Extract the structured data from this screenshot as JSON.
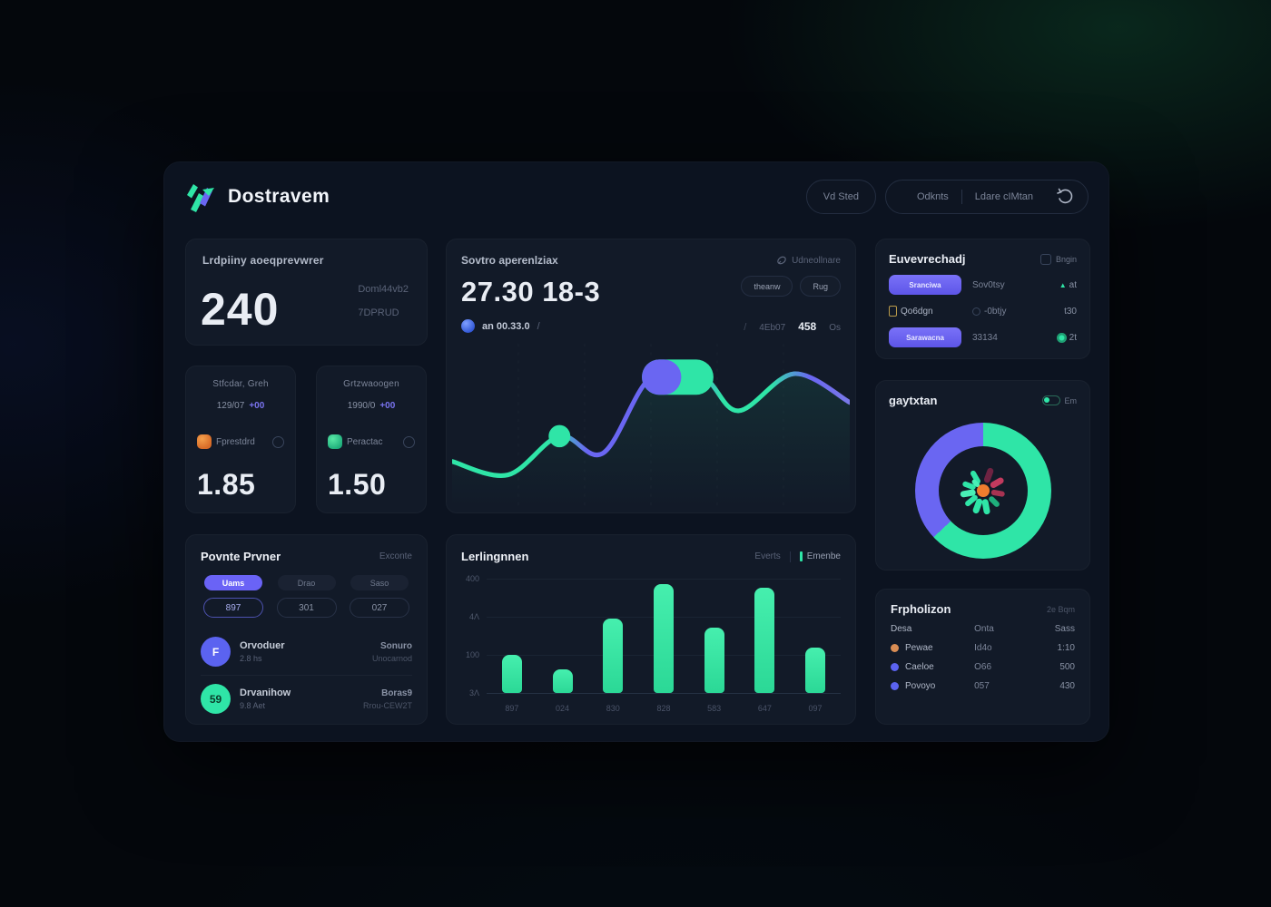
{
  "theme": {
    "accent_green": "#2fe5a7",
    "accent_purple": "#6a66f2",
    "orange": "#ef7d2e",
    "pink": "#c23a5e",
    "panel_bg": "#0c1320",
    "card_bg": "#121a28"
  },
  "header": {
    "logo_text": "Dostravem",
    "btn_single": "Vd Sted",
    "btn_group_left": "Odknts",
    "btn_group_right": "Ldare cIMtan"
  },
  "left": {
    "stat_card": {
      "title": "Lrdpiiny aoeqprevwrer",
      "value": "240",
      "side_line1": "Doml44vb2",
      "side_line2": "7DPRUD"
    },
    "mini_cards": [
      {
        "title": "Stfcdar, Greh",
        "value": "129/07",
        "delta": "+00",
        "label": "Fprestdrd",
        "big": "1.85"
      },
      {
        "title": "Grtzwaoogen",
        "value": "1990/0",
        "delta": "+00",
        "label": "Peractac",
        "big": "1.50"
      }
    ],
    "points_panel": {
      "title": "Povnte Prvner",
      "link": "Exconte",
      "tabs": [
        "Uams",
        "Drao",
        "Saso"
      ],
      "tab_values": [
        "897",
        "301",
        "027"
      ],
      "rows": [
        {
          "avatar": "F",
          "avatar_color": "#5b63f0",
          "name": "Orvoduer",
          "sub": "2.8 hs",
          "right_top": "Sonuro",
          "right_bottom": "Unocarnod"
        },
        {
          "avatar": "59",
          "avatar_color": "#2fe5a7",
          "name": "Drvanihow",
          "sub": "9.8 Aet",
          "right_top": "Boras9",
          "right_bottom": "Rrou-CEW2T"
        }
      ]
    }
  },
  "center": {
    "main_chart": {
      "title": "Sovtro aperenlziax",
      "link": "Udneollnare",
      "value": "27.30 18-3",
      "pill1": "theanw",
      "pill2": "Rug",
      "meta_left": "an 00.33.0",
      "meta_sep": "/",
      "meta_sep2": "/",
      "meta_r1": "4Eb07",
      "meta_r2": "458",
      "meta_r3": "Os"
    },
    "bar_chart": {
      "title": "Lerlingnnen",
      "legend1": "Everts",
      "legend2": "Emenbe"
    }
  },
  "right": {
    "exchange_panel": {
      "title": "Euvevrechadj",
      "action": "Bngin",
      "rows": [
        {
          "pill": "Sranciwa",
          "mid": "Sov0tsy",
          "right": "at"
        },
        {
          "label": "Qo6dgn",
          "mid": "-0btjy",
          "right": "t30"
        },
        {
          "pill": "Sarawacna",
          "mid": "33134",
          "right": "2t"
        }
      ]
    },
    "donut_panel": {
      "title": "gaytxtan",
      "action": "Em"
    },
    "table_panel": {
      "title": "Frpholizon",
      "action": "2e Bqm",
      "headers": [
        "Desa",
        "Onta",
        "Sass"
      ],
      "rows": [
        {
          "name": "Pewae",
          "mid": "Id4o",
          "right": "1:10",
          "dot": "#d98d54"
        },
        {
          "name": "Caeloe",
          "mid": "O66",
          "right": "500",
          "dot": "#5b63f0"
        },
        {
          "name": "Povoyo",
          "mid": "057",
          "right": "430",
          "dot": "#5b63f0"
        }
      ]
    }
  },
  "chart_data": [
    {
      "id": "trend-line",
      "type": "line",
      "title": "Sovtro aperenlziax",
      "value_label": "27.30 18-3",
      "points_pct": [
        [
          0,
          27
        ],
        [
          14,
          19
        ],
        [
          27,
          42
        ],
        [
          38,
          32
        ],
        [
          50,
          77
        ],
        [
          63,
          77
        ],
        [
          72,
          57
        ],
        [
          86,
          79
        ],
        [
          100,
          62
        ]
      ],
      "dot_index": 2,
      "pill_from": 4,
      "pill_to": 5,
      "gradient_stops": [
        [
          0,
          "#2fe5a7"
        ],
        [
          0.24,
          "#2fe5a7"
        ],
        [
          0.34,
          "#6a66f2"
        ],
        [
          0.56,
          "#6a66f2"
        ],
        [
          0.68,
          "#2fe5a7"
        ],
        [
          0.8,
          "#2fe5a7"
        ],
        [
          0.9,
          "#6a66f2"
        ],
        [
          1,
          "#7a79e8"
        ]
      ],
      "grid": "vertical-dashed",
      "legend_position": "none"
    },
    {
      "id": "bars",
      "type": "bar",
      "title": "Lerlingnnen",
      "categories": [
        "897",
        "024",
        "830",
        "828",
        "583",
        "647",
        "097"
      ],
      "values": [
        100,
        62,
        195,
        285,
        172,
        277,
        120
      ],
      "ylim": [
        0,
        300
      ],
      "y_ticks": [
        "400",
        "4Λ",
        "100",
        "3Λ"
      ],
      "bar_color": "#2fe5a7",
      "grid": "horizontal",
      "legend_position": "top-right"
    },
    {
      "id": "donut",
      "type": "pie",
      "title": "gaytxtan",
      "segments": [
        {
          "label": "green-share",
          "value": 63,
          "color": "#2fe5a7"
        },
        {
          "label": "purple-share",
          "value": 37,
          "color": "#6a66f2"
        }
      ]
    }
  ]
}
